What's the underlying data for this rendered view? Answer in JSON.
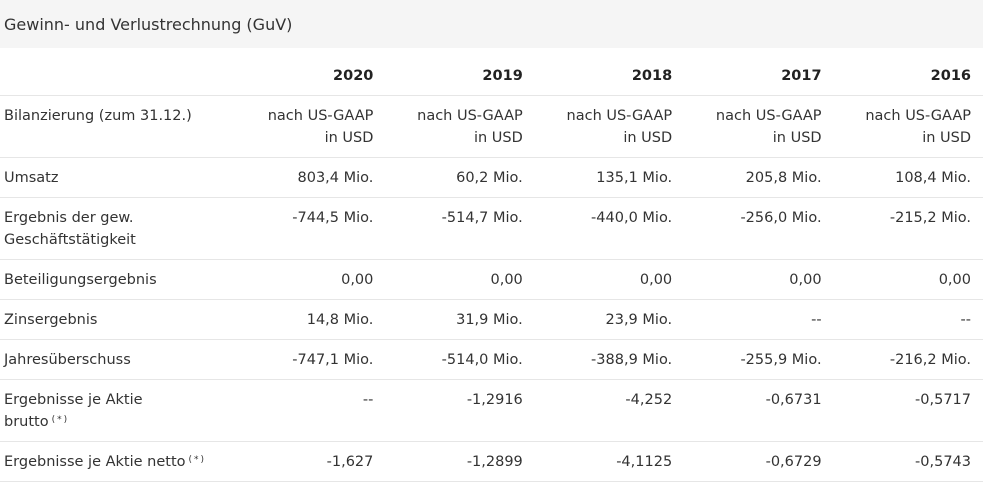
{
  "section_title": "Gewinn- und Verlustrechnung (GuV)",
  "years": [
    "2020",
    "2019",
    "2018",
    "2017",
    "2016"
  ],
  "rows": [
    {
      "label": [
        "Bilanzierung (zum 31.12.)"
      ],
      "footnote": "",
      "values": [
        [
          "nach US-GAAP",
          "in USD"
        ],
        [
          "nach US-GAAP",
          "in USD"
        ],
        [
          "nach US-GAAP",
          "in USD"
        ],
        [
          "nach US-GAAP",
          "in USD"
        ],
        [
          "nach US-GAAP",
          "in USD"
        ]
      ]
    },
    {
      "label": [
        "Umsatz"
      ],
      "footnote": "",
      "values": [
        [
          "803,4 Mio."
        ],
        [
          "60,2 Mio."
        ],
        [
          "135,1 Mio."
        ],
        [
          "205,8 Mio."
        ],
        [
          "108,4 Mio."
        ]
      ]
    },
    {
      "label": [
        "Ergebnis der gew.",
        "Geschäftstätigkeit"
      ],
      "footnote": "",
      "values": [
        [
          "-744,5 Mio."
        ],
        [
          "-514,7 Mio."
        ],
        [
          "-440,0 Mio."
        ],
        [
          "-256,0 Mio."
        ],
        [
          "-215,2 Mio."
        ]
      ]
    },
    {
      "label": [
        "Beteiligungsergebnis"
      ],
      "footnote": "",
      "values": [
        [
          "0,00"
        ],
        [
          "0,00"
        ],
        [
          "0,00"
        ],
        [
          "0,00"
        ],
        [
          "0,00"
        ]
      ]
    },
    {
      "label": [
        "Zinsergebnis"
      ],
      "footnote": "",
      "values": [
        [
          "14,8 Mio."
        ],
        [
          "31,9 Mio."
        ],
        [
          "23,9 Mio."
        ],
        [
          "--"
        ],
        [
          "--"
        ]
      ]
    },
    {
      "label": [
        "Jahresüberschuss"
      ],
      "footnote": "",
      "values": [
        [
          "-747,1 Mio."
        ],
        [
          "-514,0 Mio."
        ],
        [
          "-388,9 Mio."
        ],
        [
          "-255,9 Mio."
        ],
        [
          "-216,2 Mio."
        ]
      ]
    },
    {
      "label": [
        "Ergebnisse je Aktie",
        "brutto"
      ],
      "footnote": "(*)",
      "values": [
        [
          "--"
        ],
        [
          "-1,2916"
        ],
        [
          "-4,252"
        ],
        [
          "-0,6731"
        ],
        [
          "-0,5717"
        ]
      ]
    },
    {
      "label": [
        "Ergebnisse je Aktie netto"
      ],
      "footnote": "(*)",
      "values": [
        [
          "-1,627"
        ],
        [
          "-1,2899"
        ],
        [
          "-4,1125"
        ],
        [
          "-0,6729"
        ],
        [
          "-0,5743"
        ]
      ]
    }
  ]
}
